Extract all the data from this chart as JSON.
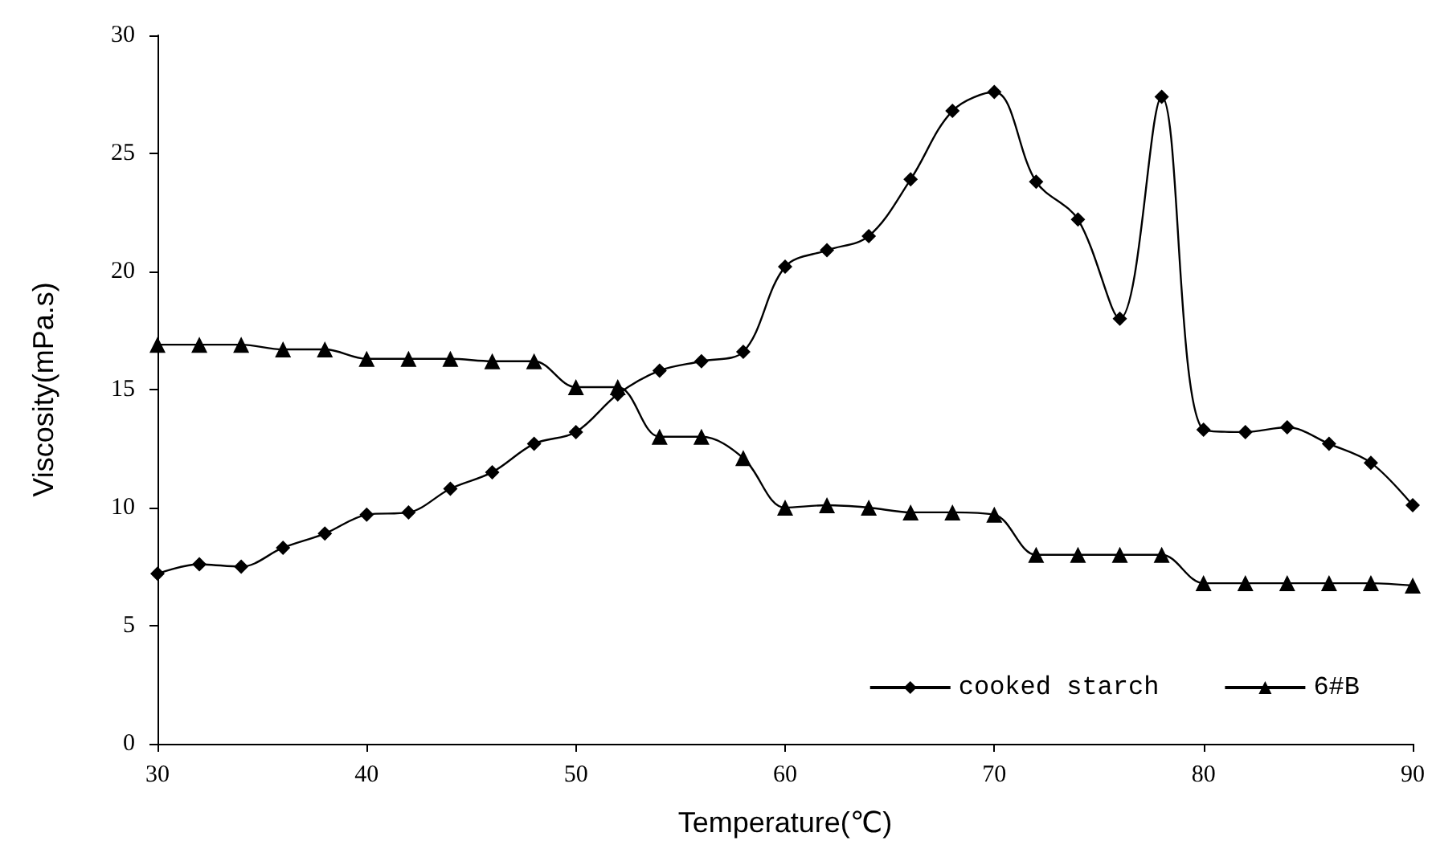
{
  "chart_data": {
    "type": "line",
    "xlabel": "Temperature(℃)",
    "ylabel": "Viscosity(mPa.s)",
    "x": [
      30,
      32,
      34,
      36,
      38,
      40,
      42,
      44,
      46,
      48,
      50,
      52,
      54,
      56,
      58,
      60,
      62,
      64,
      66,
      68,
      70,
      72,
      74,
      76,
      78,
      80,
      82,
      84,
      86,
      88,
      90
    ],
    "series": [
      {
        "name": "cooked starch",
        "color": "#000000",
        "marker": "diamond",
        "values": [
          7.2,
          7.6,
          7.5,
          8.3,
          8.9,
          9.7,
          9.8,
          10.8,
          11.5,
          12.7,
          13.2,
          14.8,
          15.8,
          16.2,
          16.6,
          20.2,
          20.9,
          21.5,
          23.9,
          26.8,
          27.6,
          23.8,
          22.2,
          18.0,
          27.4,
          13.3,
          13.2,
          13.4,
          12.7,
          11.9,
          10.1
        ]
      },
      {
        "name": "6#B",
        "color": "#000000",
        "marker": "triangle",
        "values": [
          16.9,
          16.9,
          16.9,
          16.7,
          16.7,
          16.3,
          16.3,
          16.3,
          16.2,
          16.2,
          15.1,
          15.1,
          13.0,
          13.0,
          12.1,
          10.0,
          10.1,
          10.0,
          9.8,
          9.8,
          9.7,
          8.0,
          8.0,
          8.0,
          8.0,
          6.8,
          6.8,
          6.8,
          6.8,
          6.8,
          6.7
        ]
      }
    ],
    "xlim": [
      30,
      90
    ],
    "xticks": [
      30,
      40,
      50,
      60,
      70,
      80,
      90
    ],
    "ylim": [
      0,
      30
    ],
    "yticks": [
      0,
      5,
      10,
      15,
      20,
      25,
      30
    ],
    "grid": false,
    "legend": "bottom right",
    "line_style": "solid"
  }
}
